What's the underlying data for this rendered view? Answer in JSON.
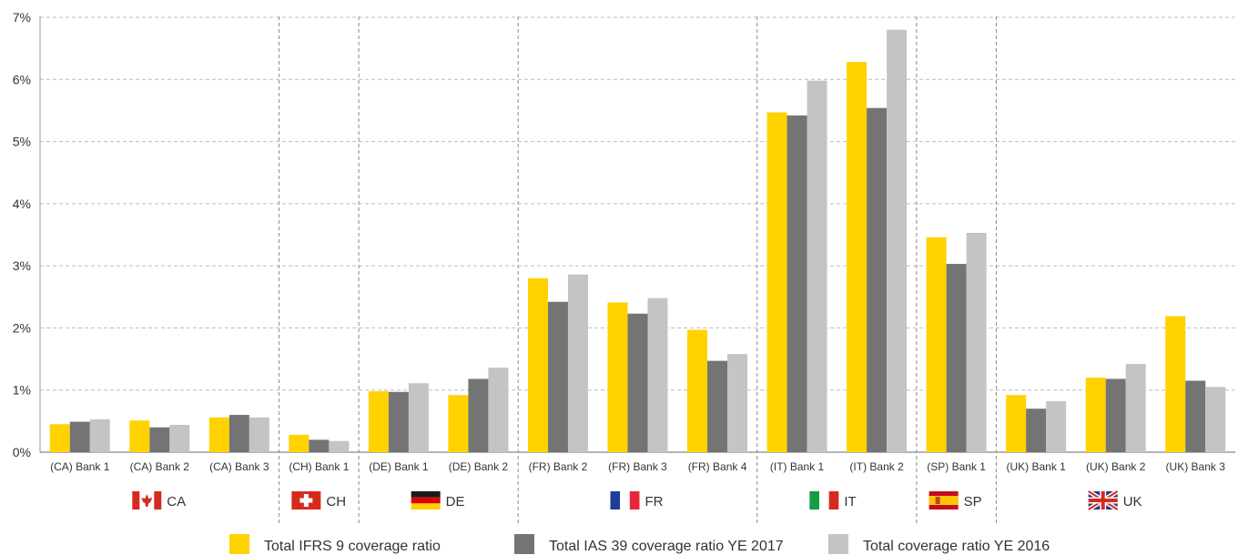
{
  "chart_data": {
    "type": "bar",
    "ylim": [
      0,
      7
    ],
    "yticks": [
      "0%",
      "1%",
      "2%",
      "3%",
      "4%",
      "5%",
      "6%",
      "7%"
    ],
    "categories": [
      "(CA) Bank 1",
      "(CA) Bank 2",
      "(CA) Bank 3",
      "(CH) Bank 1",
      "(DE) Bank 1",
      "(DE) Bank 2",
      "(FR) Bank 2",
      "(FR) Bank 3",
      "(FR) Bank 4",
      "(IT) Bank 1",
      "(IT) Bank 2",
      "(SP) Bank 1",
      "(UK) Bank 1",
      "(UK) Bank 2",
      "(UK) Bank 3"
    ],
    "series": [
      {
        "name": "Total IFRS 9 coverage ratio",
        "color": "#FFD200",
        "values": [
          0.45,
          0.51,
          0.56,
          0.28,
          0.98,
          0.92,
          2.8,
          2.41,
          1.97,
          5.47,
          6.28,
          3.46,
          0.92,
          1.2,
          2.19
        ]
      },
      {
        "name": "Total IAS 39 coverage ratio YE 2017",
        "color": "#747474",
        "values": [
          0.49,
          0.4,
          0.6,
          0.2,
          0.97,
          1.18,
          2.42,
          2.23,
          1.47,
          5.42,
          5.54,
          3.03,
          0.7,
          1.18,
          1.15
        ]
      },
      {
        "name": "Total coverage ratio YE 2016",
        "color": "#C4C4C4",
        "values": [
          0.53,
          0.44,
          0.56,
          0.18,
          1.11,
          1.36,
          2.86,
          2.48,
          1.58,
          5.98,
          6.8,
          3.53,
          0.82,
          1.42,
          1.05
        ]
      }
    ],
    "groups": [
      {
        "label": "CA",
        "flag": "canada-flag",
        "count": 3
      },
      {
        "label": "CH",
        "flag": "switzerland-flag",
        "count": 1
      },
      {
        "label": "DE",
        "flag": "germany-flag",
        "count": 2
      },
      {
        "label": "FR",
        "flag": "france-flag",
        "count": 3
      },
      {
        "label": "IT",
        "flag": "italy-flag",
        "count": 2
      },
      {
        "label": "SP",
        "flag": "spain-flag",
        "count": 1
      },
      {
        "label": "UK",
        "flag": "uk-flag",
        "count": 3
      }
    ],
    "grid": true,
    "legend_position": "bottom"
  }
}
